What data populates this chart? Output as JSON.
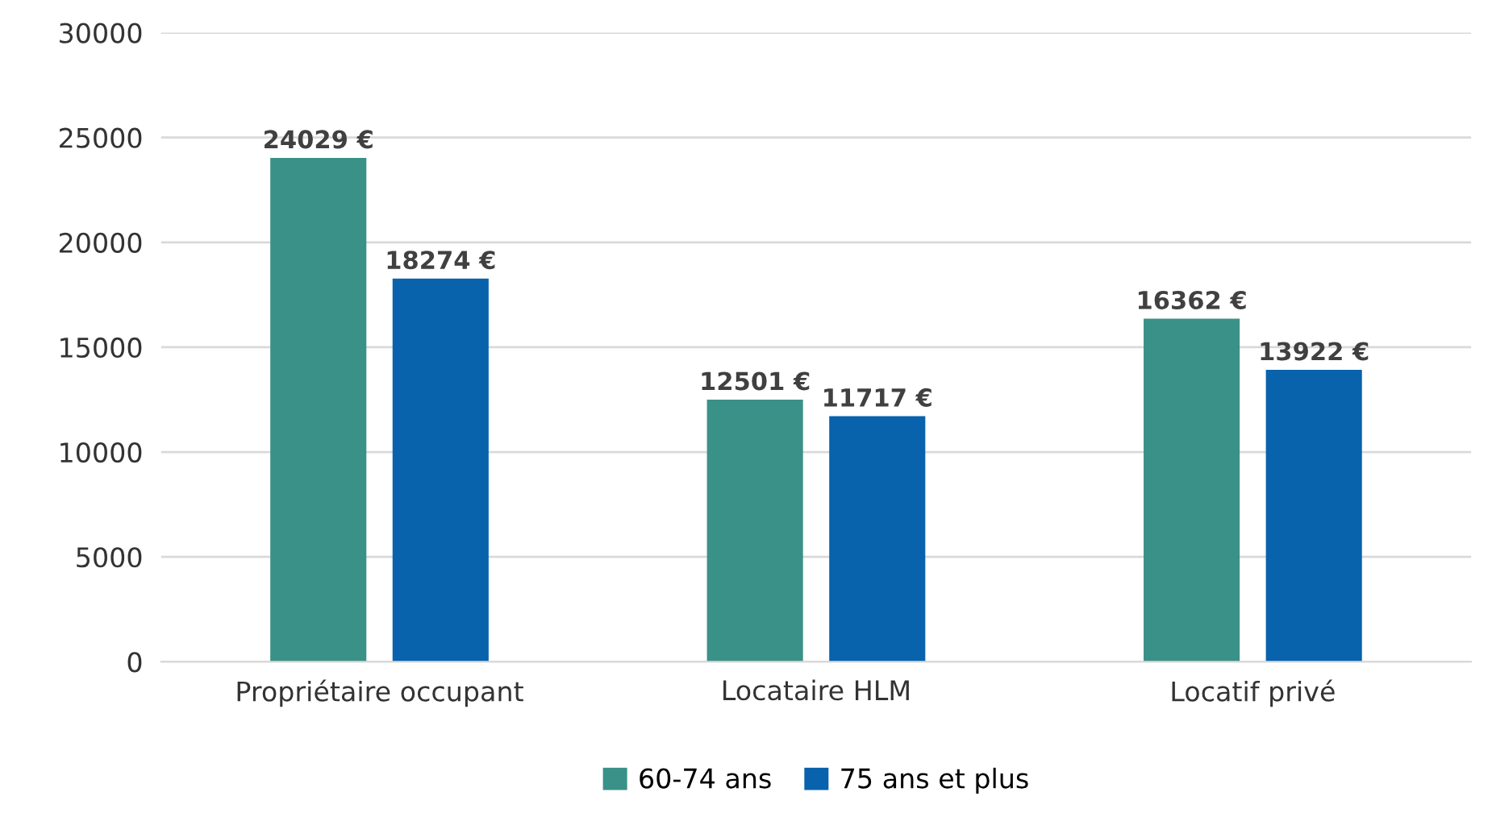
{
  "chart_data": {
    "type": "bar",
    "categories": [
      "Propriétaire occupant",
      "Locataire HLM",
      "Locatif privé"
    ],
    "series": [
      {
        "name": "60-74 ans",
        "color": "#3a9188",
        "values": [
          24029,
          12501,
          16362
        ],
        "value_labels": [
          "24029 €",
          "12501 €",
          "16362 €"
        ]
      },
      {
        "name": "75 ans et plus",
        "color": "#0862ac",
        "values": [
          18274,
          11717,
          13922
        ],
        "value_labels": [
          "18274 €",
          "11717 €",
          "13922 €"
        ]
      }
    ],
    "ylim": [
      0,
      30000
    ],
    "yticks": [
      0,
      5000,
      10000,
      15000,
      20000,
      25000,
      30000
    ],
    "grid": "y",
    "legend": "bottom"
  }
}
